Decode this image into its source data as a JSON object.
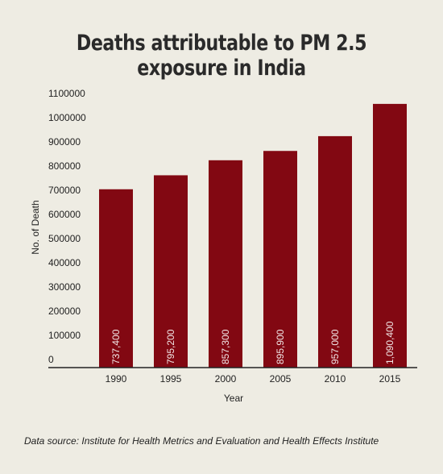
{
  "title": "Deaths attributable to PM 2.5 exposure in India",
  "source": "Data source: Institute for Health Metrics and Evaluation and Health Effects Institute",
  "chart_data": {
    "type": "bar",
    "title": "Deaths attributable to PM 2.5 exposure in India",
    "xlabel": "Year",
    "ylabel": "No. of Death",
    "categories": [
      "1990",
      "1995",
      "2000",
      "2005",
      "2010",
      "2015"
    ],
    "values": [
      737400,
      795200,
      857300,
      895900,
      957000,
      1090400
    ],
    "data_labels": [
      "737,400",
      "795,200",
      "857,300",
      "895,900",
      "957,000",
      "1,090,400"
    ],
    "y_ticks": [
      "0",
      "100000",
      "200000",
      "300000",
      "400000",
      "500000",
      "600000",
      "700000",
      "800000",
      "900000",
      "1000000",
      "1100000"
    ],
    "ylim": [
      0,
      1100000
    ],
    "bar_color": "#820812",
    "grid": false
  }
}
